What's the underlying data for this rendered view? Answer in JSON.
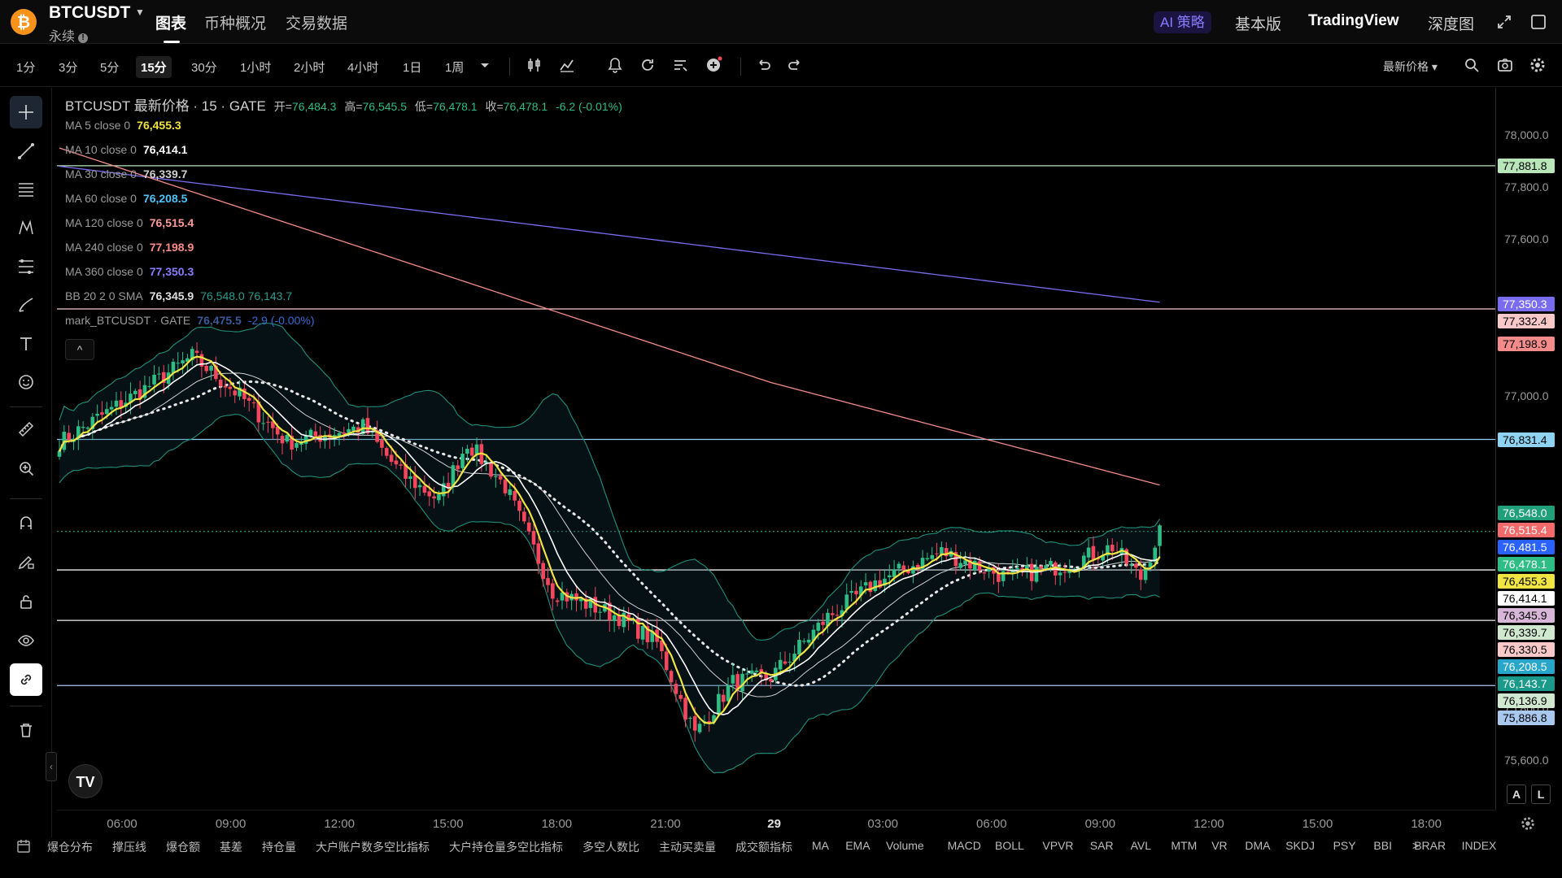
{
  "header": {
    "symbol": "BTCUSDT",
    "contract_type": "永续",
    "tabs": [
      "图表",
      "币种概况",
      "交易数据"
    ],
    "ai_label": "AI 策略",
    "right_tabs": [
      "基本版",
      "TradingView",
      "深度图"
    ]
  },
  "toolbar": {
    "timeframes": [
      "1分",
      "3分",
      "5分",
      "15分",
      "30分",
      "1小时",
      "2小时",
      "4小时",
      "1日",
      "1周"
    ],
    "active_timeframe": "15分",
    "price_type": "最新价格"
  },
  "legend": {
    "title": "BTCUSDT 最新价格 · 15 · GATE",
    "open_label": "开=",
    "open": "76,484.3",
    "high_label": "高=",
    "high": "76,545.5",
    "low_label": "低=",
    "low": "76,478.1",
    "close_label": "收=",
    "close": "76,478.1",
    "change": "-6.2 (-0.01%)",
    "indicators": [
      {
        "label": "MA 5 close 0",
        "value": "76,455.3",
        "color": "#f0e442"
      },
      {
        "label": "MA 10 close 0",
        "value": "76,414.1",
        "color": "#ffffff"
      },
      {
        "label": "MA 30 close 0",
        "value": "76,339.7",
        "color": "#cfcfcf"
      },
      {
        "label": "MA 60 close 0",
        "value": "76,208.5",
        "color": "#4fc3f7"
      },
      {
        "label": "MA 120 close 0",
        "value": "76,515.4",
        "color": "#ff9a9a"
      },
      {
        "label": "MA 240 close 0",
        "value": "77,198.9",
        "color": "#ff8a8a"
      },
      {
        "label": "MA 360 close 0",
        "value": "77,350.3",
        "color": "#8a7cff"
      },
      {
        "label": "BB 20 2 0 SMA",
        "value": "76,345.9",
        "color": "#e0e0e0",
        "extra": "76,548.0  76,143.7",
        "extra_color": "#2a9d8f"
      },
      {
        "label": "mark_BTCUSDT · GATE",
        "value": "76,475.5",
        "color": "#3a5a9a",
        "extra": "-2.9 (-0.00%)",
        "extra_color": "#3a6ad0"
      }
    ]
  },
  "price_axis": {
    "ticks": [
      "78,000.0",
      "77,800.0",
      "77,600.0",
      "77,000.0",
      "75,800.0",
      "75,600.0"
    ],
    "tags": [
      {
        "text": "77,881.8",
        "bg": "#b8e6b8",
        "fg": "#000"
      },
      {
        "text": "77,350.3",
        "bg": "#7a6cf0",
        "fg": "#fff"
      },
      {
        "text": "77,332.4",
        "bg": "#f9c9c9",
        "fg": "#000"
      },
      {
        "text": "77,198.9",
        "bg": "#f48b8b",
        "fg": "#000"
      },
      {
        "text": "76,831.4",
        "bg": "#8fd3f2",
        "fg": "#000"
      },
      {
        "text": "76,548.0",
        "bg": "#1f9f7a",
        "fg": "#fff"
      },
      {
        "text": "76,515.4",
        "bg": "#f26a6a",
        "fg": "#fff"
      },
      {
        "text": "76,481.5",
        "bg": "#2962ff",
        "fg": "#fff"
      },
      {
        "text": "76,478.1",
        "bg": "#2ebd85",
        "fg": "#fff"
      },
      {
        "text": "76,455.3",
        "bg": "#f0e442",
        "fg": "#000"
      },
      {
        "text": "76,414.1",
        "bg": "#ffffff",
        "fg": "#000"
      },
      {
        "text": "76,345.9",
        "bg": "#d8b6d8",
        "fg": "#000"
      },
      {
        "text": "76,339.7",
        "bg": "#cfe8cf",
        "fg": "#000"
      },
      {
        "text": "76,330.5",
        "bg": "#f9c9c9",
        "fg": "#000"
      },
      {
        "text": "76,208.5",
        "bg": "#26a6c9",
        "fg": "#fff"
      },
      {
        "text": "76,143.7",
        "bg": "#1a9a8a",
        "fg": "#fff"
      },
      {
        "text": "76,136.9",
        "bg": "#cfe8cf",
        "fg": "#000"
      },
      {
        "text": "75,886.8",
        "bg": "#a9c8f0",
        "fg": "#000"
      }
    ]
  },
  "time_axis": {
    "ticks": [
      "06:00",
      "09:00",
      "12:00",
      "15:00",
      "18:00",
      "21:00",
      "29",
      "03:00",
      "06:00",
      "09:00",
      "12:00",
      "15:00",
      "18:00"
    ]
  },
  "horizontal_lines": [
    {
      "price": 77881.8,
      "color": "#b8e6b8"
    },
    {
      "price": 77332.4,
      "color": "#f9c9c9"
    },
    {
      "price": 76831.4,
      "color": "#8fd3f2"
    },
    {
      "price": 76330.5,
      "color": "#f0f0f0"
    },
    {
      "price": 76136.9,
      "color": "#f0f0f0"
    },
    {
      "price": 75886.8,
      "color": "#a9c8f0"
    }
  ],
  "colors": {
    "up": "#2ebd85",
    "down": "#f6465d",
    "ma5": "#f0e442",
    "ma10": "#ffffff",
    "ma120": "#ff9a9a",
    "ma240": "#f48b8b",
    "ma360": "#7a6cf0",
    "bb": "#1f8f7a"
  },
  "bottom_indicators": [
    "爆仓分布",
    "撑压线",
    "爆仓额",
    "基差",
    "持仓量",
    "大户账户数多空比指标",
    "大户持仓量多空比指标",
    "多空人数比",
    "主动买卖量",
    "成交额指标",
    "MA",
    "EMA",
    "Volume",
    "MACD",
    "BOLL",
    "VPVR",
    "SAR",
    "AVL",
    "MTM",
    "VR",
    "DMA",
    "SKDJ",
    "PSY",
    "BBI",
    "BRAR",
    "INDEX"
  ],
  "buttons": {
    "auto": "A",
    "log": "L",
    "collapse": "^",
    "tv_logo": "TV",
    "more": ">"
  }
}
